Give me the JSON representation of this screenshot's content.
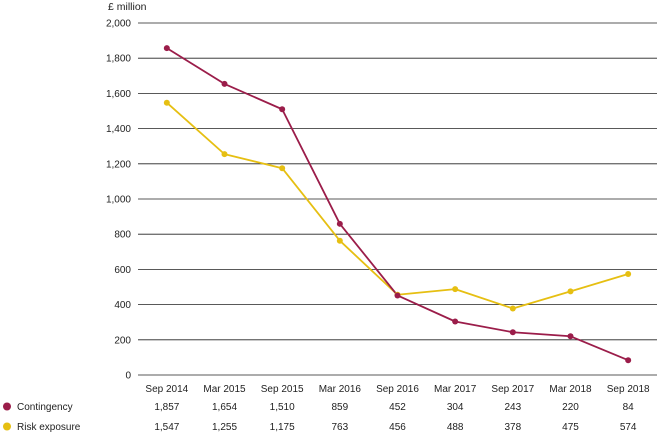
{
  "chart_data": {
    "type": "line",
    "ylabel": "£ million",
    "ylim": [
      0,
      2000
    ],
    "yticks": [
      "0",
      "200",
      "400",
      "600",
      "800",
      "1,000",
      "1,200",
      "1,400",
      "1,600",
      "1,800",
      "2,000"
    ],
    "ytick_values": [
      0,
      200,
      400,
      600,
      800,
      1000,
      1200,
      1400,
      1600,
      1800,
      2000
    ],
    "categories": [
      "Sep 2014",
      "Mar 2015",
      "Sep 2015",
      "Mar 2016",
      "Sep 2016",
      "Mar 2017",
      "Sep 2017",
      "Mar 2018",
      "Sep 2018"
    ],
    "grid": true,
    "legend_placement": "bottom-left",
    "series": [
      {
        "name": "Contingency",
        "color": "#9b1d4a",
        "values": [
          1857,
          1654,
          1510,
          859,
          452,
          304,
          243,
          220,
          84
        ],
        "labels": [
          "1,857",
          "1,654",
          "1,510",
          "859",
          "452",
          "304",
          "243",
          "220",
          "84"
        ]
      },
      {
        "name": "Risk exposure",
        "color": "#e6bf12",
        "values": [
          1547,
          1255,
          1175,
          763,
          456,
          488,
          378,
          475,
          574
        ],
        "labels": [
          "1,547",
          "1,255",
          "1,175",
          "763",
          "456",
          "488",
          "378",
          "475",
          "574"
        ]
      }
    ]
  }
}
